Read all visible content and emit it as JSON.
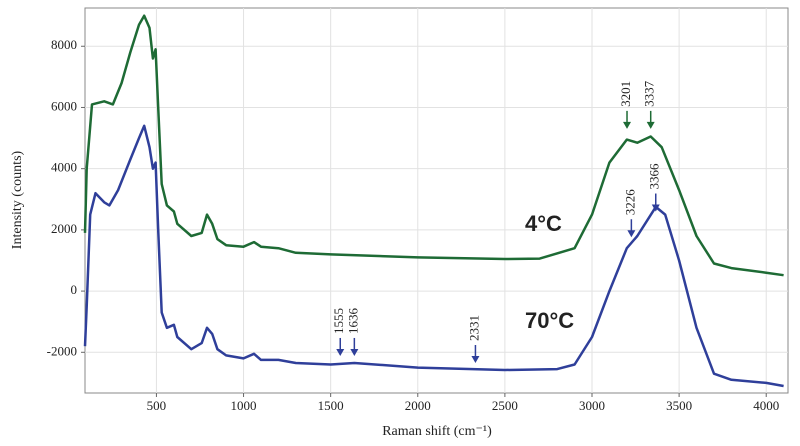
{
  "chart_data": {
    "type": "line",
    "xlabel": "Raman shift (cm⁻¹)",
    "ylabel": "Intensity (counts)",
    "xlim": [
      90,
      4125
    ],
    "ylim": [
      -3330,
      9250
    ],
    "xticks": [
      500,
      1000,
      1500,
      2000,
      2500,
      3000,
      3500,
      4000
    ],
    "yticks": [
      -2000,
      0,
      2000,
      4000,
      6000,
      8000
    ],
    "grid": true,
    "series": [
      {
        "name": "4°C",
        "color": "#1e6b35",
        "x": [
          90,
          100,
          130,
          200,
          250,
          300,
          350,
          400,
          430,
          460,
          480,
          495,
          510,
          530,
          560,
          600,
          620,
          700,
          760,
          790,
          820,
          850,
          900,
          1000,
          1060,
          1100,
          1200,
          1300,
          1500,
          2000,
          2500,
          2700,
          2900,
          3000,
          3100,
          3200,
          3260,
          3337,
          3400,
          3500,
          3600,
          3700,
          3800,
          4000,
          4100
        ],
        "values": [
          1900,
          4000,
          6100,
          6200,
          6100,
          6800,
          7800,
          8700,
          9000,
          8600,
          7600,
          7900,
          6000,
          3500,
          2800,
          2600,
          2200,
          1800,
          1900,
          2500,
          2200,
          1700,
          1500,
          1450,
          1600,
          1450,
          1400,
          1250,
          1200,
          1100,
          1050,
          1060,
          1400,
          2500,
          4200,
          4950,
          4850,
          5050,
          4700,
          3300,
          1800,
          900,
          750,
          600,
          520
        ]
      },
      {
        "name": "70°C",
        "color": "#2f3f9a",
        "x": [
          90,
          100,
          120,
          150,
          200,
          230,
          280,
          350,
          400,
          430,
          460,
          480,
          495,
          510,
          530,
          560,
          600,
          620,
          700,
          760,
          790,
          820,
          850,
          900,
          1000,
          1060,
          1100,
          1200,
          1300,
          1500,
          1636,
          2000,
          2500,
          2800,
          2900,
          3000,
          3100,
          3200,
          3260,
          3366,
          3420,
          3500,
          3600,
          3700,
          3800,
          4000,
          4100
        ],
        "values": [
          -1800,
          -500,
          2500,
          3200,
          2900,
          2800,
          3300,
          4300,
          5000,
          5400,
          4700,
          4000,
          4200,
          2000,
          -700,
          -1200,
          -1100,
          -1500,
          -1900,
          -1700,
          -1200,
          -1400,
          -1900,
          -2100,
          -2200,
          -2050,
          -2250,
          -2250,
          -2350,
          -2400,
          -2350,
          -2500,
          -2580,
          -2550,
          -2400,
          -1500,
          0,
          1400,
          1800,
          2750,
          2500,
          1000,
          -1200,
          -2700,
          -2900,
          -3000,
          -3100
        ]
      }
    ],
    "annotations": [
      {
        "text": "3201",
        "x": 3201,
        "y": 5300,
        "color": "#1e6b35"
      },
      {
        "text": "3337",
        "x": 3337,
        "y": 5300,
        "color": "#1e6b35"
      },
      {
        "text": "3226",
        "x": 3226,
        "y": 1760,
        "color": "#2f3f9a"
      },
      {
        "text": "3366",
        "x": 3366,
        "y": 2600,
        "color": "#2f3f9a"
      },
      {
        "text": "1555",
        "x": 1555,
        "y": -2120,
        "color": "#2f3f9a"
      },
      {
        "text": "1636",
        "x": 1636,
        "y": -2120,
        "color": "#2f3f9a"
      },
      {
        "text": "2331",
        "x": 2331,
        "y": -2350,
        "color": "#2f3f9a"
      }
    ]
  }
}
